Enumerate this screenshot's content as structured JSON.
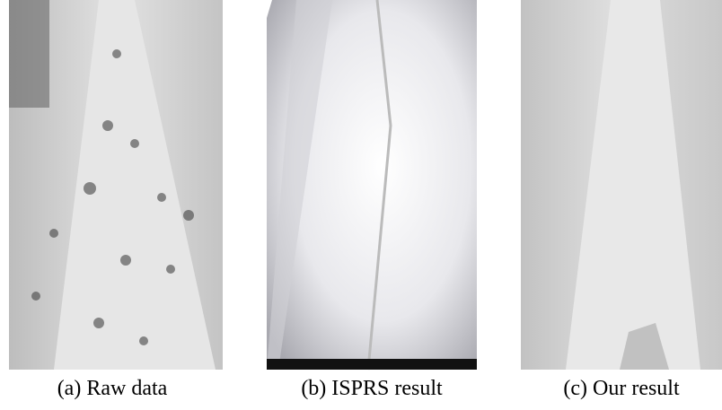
{
  "figure": {
    "panels": [
      {
        "caption": "(a) Raw data"
      },
      {
        "caption": "(b) ISPRS result"
      },
      {
        "caption": "(c) Our result"
      }
    ]
  }
}
